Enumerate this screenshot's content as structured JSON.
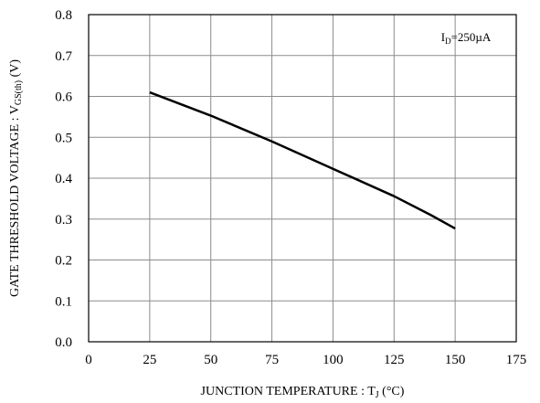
{
  "chart_data": {
    "type": "line",
    "title": "",
    "xlabel": {
      "main": "JUNCTION TEMPERATURE : T",
      "sub": "J",
      "tail": " (°C)"
    },
    "ylabel": {
      "main": "GATE THRESHOLD VOLTAGE : V",
      "sub": "GS(th)",
      "tail": " (V)"
    },
    "xlim": [
      0,
      175
    ],
    "ylim": [
      0,
      0.8
    ],
    "x_ticks": [
      0,
      25,
      50,
      75,
      100,
      125,
      150,
      175
    ],
    "x_tick_labels": [
      "0",
      "25",
      "50",
      "75",
      "100",
      "125",
      "150",
      "175"
    ],
    "y_ticks": [
      0,
      0.1,
      0.2,
      0.3,
      0.4,
      0.5,
      0.6,
      0.7,
      0.8
    ],
    "y_tick_labels": [
      "0.0",
      "0.1",
      "0.2",
      "0.3",
      "0.4",
      "0.5",
      "0.6",
      "0.7",
      "0.8"
    ],
    "grid": true,
    "annotation": {
      "main": "I",
      "sub": "D",
      "tail": "=250µA"
    },
    "series": [
      {
        "x": [
          25,
          50,
          75,
          100,
          125,
          140,
          150
        ],
        "y": [
          0.61,
          0.553,
          0.49,
          0.423,
          0.356,
          0.31,
          0.277
        ]
      }
    ]
  }
}
